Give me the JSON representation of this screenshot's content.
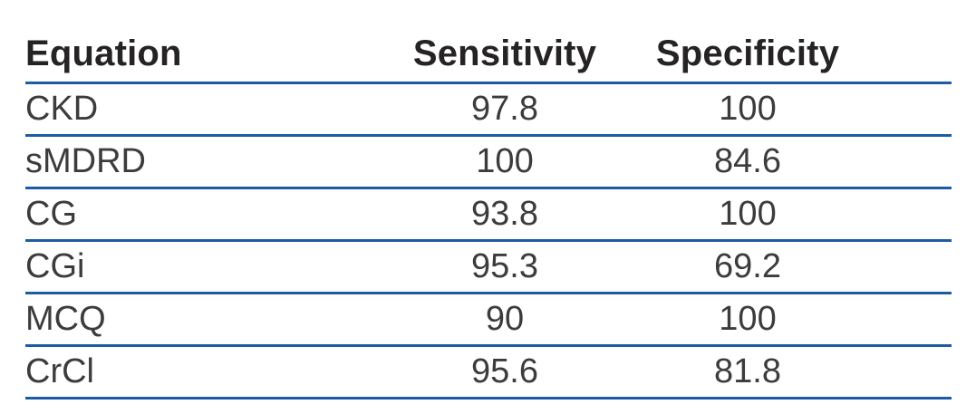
{
  "table": {
    "headers": {
      "equation": "Equation",
      "sensitivity": "Sensitivity",
      "specificity": "Specificity"
    },
    "rows": [
      {
        "equation": "CKD",
        "sensitivity": "97.8",
        "specificity": "100"
      },
      {
        "equation": "sMDRD",
        "sensitivity": "100",
        "specificity": "84.6"
      },
      {
        "equation": "CG",
        "sensitivity": "93.8",
        "specificity": "100"
      },
      {
        "equation": "CGi",
        "sensitivity": "95.3",
        "specificity": "69.2"
      },
      {
        "equation": "MCQ",
        "sensitivity": "90",
        "specificity": "100"
      },
      {
        "equation": "CrCl",
        "sensitivity": "95.6",
        "specificity": "81.8"
      }
    ]
  },
  "chart_data": {
    "type": "table",
    "columns": [
      "Equation",
      "Sensitivity",
      "Specificity"
    ],
    "rows": [
      [
        "CKD",
        97.8,
        100
      ],
      [
        "sMDRD",
        100,
        84.6
      ],
      [
        "CG",
        93.8,
        100
      ],
      [
        "CGi",
        95.3,
        69.2
      ],
      [
        "MCQ",
        90,
        100
      ],
      [
        "CrCl",
        95.6,
        81.8
      ]
    ]
  },
  "colors": {
    "rule_blue": "#1d5ca4",
    "header_text": "#262324",
    "body_text": "#3d3b3c",
    "background": "#ffffff"
  }
}
